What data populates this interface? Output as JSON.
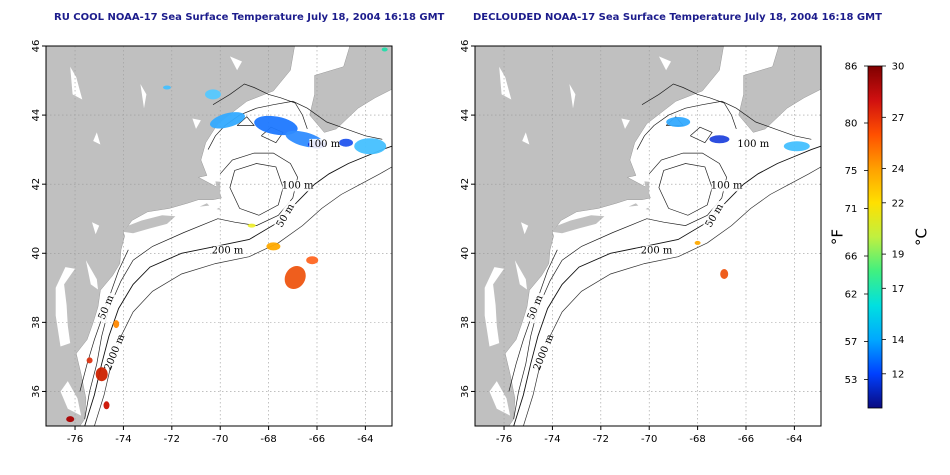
{
  "maps": [
    {
      "id": "ru-cool",
      "title": "RU COOL NOAA-17 Sea Surface Temperature July 18, 2004 16:18 GMT",
      "variant": "raw"
    },
    {
      "id": "declouded",
      "title": "DECLOUDED NOAA-17 Sea Surface Temperature July 18, 2004 16:18 GMT",
      "variant": "declouded"
    }
  ],
  "axes": {
    "lon_range": [
      -77.2,
      -62.9
    ],
    "lat_range": [
      35.0,
      46.0
    ],
    "lon_ticks": [
      "-76",
      "-74",
      "-72",
      "-70",
      "-68",
      "-66",
      "-64"
    ],
    "lat_ticks": [
      "36",
      "38",
      "40",
      "42",
      "44",
      "46"
    ],
    "grid": true
  },
  "contour_labels": [
    "100 m",
    "100 m",
    "50 m",
    "200 m",
    "50 m",
    "2000 m"
  ],
  "colors": {
    "land": "#c0c0c0",
    "title": "#1c1c8c"
  },
  "colorbar": {
    "fahrenheit_unit": "°F",
    "celsius_unit": "°C",
    "fahrenheit_ticks": [
      "86",
      "80",
      "75",
      "71",
      "66",
      "62",
      "57",
      "53"
    ],
    "celsius_ticks": [
      "30",
      "27",
      "24",
      "22",
      "19",
      "17",
      "14",
      "12"
    ],
    "range_c": [
      10,
      30
    ],
    "gradient": [
      "#0a0a80",
      "#0040ff",
      "#00a8ff",
      "#00e0e0",
      "#40f080",
      "#c0f040",
      "#ffe000",
      "#ffa000",
      "#ff5000",
      "#d01010",
      "#800000"
    ]
  }
}
